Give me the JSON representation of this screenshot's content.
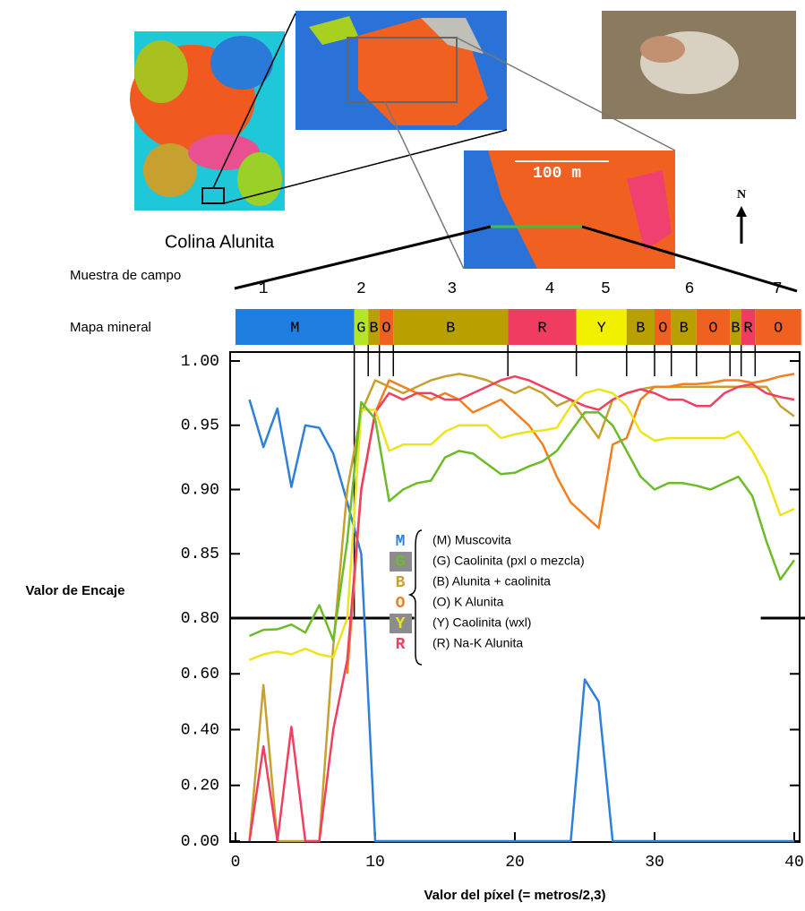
{
  "chart_data": {
    "type": "line",
    "x_label": "Valor del píxel (= metros/2,3)",
    "y_label": "Valor de Encaje",
    "annotations": {
      "site": "Colina Alunita",
      "scale": "100 m",
      "north": "N",
      "field_row": "Muestra de campo",
      "map_row": "Mapa mineral"
    },
    "field_samples": [
      "1",
      "2",
      "3",
      "4",
      "5",
      "6",
      "7"
    ],
    "mineral_map": [
      {
        "label": "M",
        "color": "#1e7fe0",
        "start": 0,
        "end": 8.5
      },
      {
        "label": "G",
        "color": "#b4e628",
        "start": 8.5,
        "end": 9.5
      },
      {
        "label": "B",
        "color": "#b8a000",
        "start": 9.5,
        "end": 10.3
      },
      {
        "label": "O",
        "color": "#f06020",
        "start": 10.3,
        "end": 11.3
      },
      {
        "label": "B",
        "color": "#b8a000",
        "start": 11.3,
        "end": 19.5
      },
      {
        "label": "R",
        "color": "#f03c60",
        "start": 19.5,
        "end": 24.4
      },
      {
        "label": "Y",
        "color": "#f0f000",
        "start": 24.4,
        "end": 28
      },
      {
        "label": "B",
        "color": "#b8a000",
        "start": 28,
        "end": 30
      },
      {
        "label": "O",
        "color": "#f06020",
        "start": 30,
        "end": 31.2
      },
      {
        "label": "B",
        "color": "#b8a000",
        "start": 31.2,
        "end": 33
      },
      {
        "label": "O",
        "color": "#f06020",
        "start": 33,
        "end": 35.4
      },
      {
        "label": "B",
        "color": "#b8a000",
        "start": 35.4,
        "end": 36.2
      },
      {
        "label": "R",
        "color": "#f03c60",
        "start": 36.2,
        "end": 37.2
      },
      {
        "label": "O",
        "color": "#f06020",
        "start": 37.2,
        "end": 40.5
      }
    ],
    "xlim": [
      0,
      40
    ],
    "xticks": [
      0,
      10,
      20,
      30,
      40
    ],
    "ylim": [
      0,
      1
    ],
    "yticks": [
      {
        "value": 0,
        "label": "0.00"
      },
      {
        "value": 0.2,
        "label": "0.20"
      },
      {
        "value": 0.4,
        "label": "0.40"
      },
      {
        "value": 0.6,
        "label": "0.60"
      },
      {
        "value": 0.8,
        "label": "0.80"
      },
      {
        "value": 0.85,
        "label": "0.85"
      },
      {
        "value": 0.9,
        "label": "0.90"
      },
      {
        "value": 0.95,
        "label": "0.95"
      },
      {
        "value": 1,
        "label": "1.00"
      }
    ],
    "reference_line": 0.8,
    "x": [
      1,
      2,
      3,
      4,
      5,
      6,
      7,
      8,
      9,
      10,
      11,
      12,
      13,
      14,
      15,
      16,
      17,
      18,
      19,
      20,
      21,
      22,
      23,
      24,
      25,
      26,
      27,
      28,
      29,
      30,
      31,
      32,
      33,
      34,
      35,
      36,
      37,
      38,
      39,
      40
    ],
    "series": [
      {
        "key": "M",
        "name": "(M) Muscovita",
        "color": "#2f80d8",
        "key_bg": null,
        "values": [
          0.97,
          0.933,
          0.963,
          0.902,
          0.95,
          0.948,
          0.928,
          0.89,
          0.85,
          0,
          0,
          0,
          0,
          0,
          0,
          0,
          0,
          0,
          0,
          0,
          0,
          0,
          0,
          0,
          0.58,
          0.5,
          0,
          0,
          0,
          0,
          0,
          0,
          0,
          0,
          0,
          0,
          0,
          0,
          0,
          0
        ]
      },
      {
        "key": "B",
        "name": "(B) Alunita + caolinita",
        "color": "#c8a030",
        "key_bg": null,
        "values": [
          0,
          0.56,
          0,
          0,
          0,
          0,
          0.7,
          0.9,
          0.96,
          0.985,
          0.98,
          0.975,
          0.98,
          0.985,
          0.988,
          0.99,
          0.988,
          0.985,
          0.98,
          0.975,
          0.98,
          0.975,
          0.965,
          0.97,
          0.955,
          0.94,
          0.97,
          0.975,
          0.978,
          0.98,
          0.98,
          0.98,
          0.98,
          0.98,
          0.98,
          0.98,
          0.98,
          0.98,
          0.965,
          0.957
        ]
      },
      {
        "key": "O",
        "name": "(O) K Alunita",
        "color": "#f08020",
        "key_bg": null,
        "values": [
          null,
          null,
          null,
          null,
          null,
          null,
          null,
          0.6,
          0.9,
          0.96,
          0.985,
          0.98,
          0.975,
          0.97,
          0.975,
          0.97,
          0.96,
          0.965,
          0.97,
          0.96,
          0.95,
          0.935,
          0.91,
          0.89,
          0.88,
          0.87,
          0.935,
          0.94,
          0.97,
          0.98,
          0.98,
          0.982,
          0.982,
          0.983,
          0.985,
          0.985,
          0.983,
          0.985,
          0.988,
          0.99
        ]
      },
      {
        "key": "R",
        "name": "(R) Na-K Alunita",
        "color": "#f04060",
        "key_bg": null,
        "values": [
          0,
          0.34,
          0,
          0.41,
          0,
          0,
          0.4,
          0.65,
          0.9,
          0.96,
          0.975,
          0.97,
          0.975,
          0.975,
          0.97,
          0.97,
          0.975,
          0.98,
          0.985,
          0.988,
          0.985,
          0.98,
          0.975,
          0.97,
          0.965,
          0.962,
          0.97,
          0.975,
          0.978,
          0.975,
          0.97,
          0.97,
          0.965,
          0.965,
          0.975,
          0.98,
          0.982,
          0.975,
          0.972,
          0.97
        ]
      },
      {
        "key": "Y",
        "name": "(Y) Caolinita (wxl)",
        "color": "#ece41c",
        "key_bg": "#8c8c8c",
        "values": [
          0.65,
          0.67,
          0.68,
          0.67,
          0.69,
          0.67,
          0.66,
          0.8,
          0.962,
          0.962,
          0.93,
          0.935,
          0.935,
          0.935,
          0.945,
          0.95,
          0.95,
          0.95,
          0.94,
          0.943,
          0.945,
          0.946,
          0.948,
          0.965,
          0.975,
          0.978,
          0.975,
          0.965,
          0.945,
          0.938,
          0.94,
          0.94,
          0.94,
          0.94,
          0.94,
          0.945,
          0.93,
          0.91,
          0.88,
          0.885
        ]
      },
      {
        "key": "G",
        "name": "(G) Caolinita (pxl o mezcla)",
        "color": "#6cbc2a",
        "key_bg": "#8c8c8c",
        "values": [
          0.736,
          0.758,
          0.76,
          0.777,
          0.748,
          0.81,
          0.72,
          0.86,
          0.968,
          0.955,
          0.891,
          0.9,
          0.905,
          0.907,
          0.925,
          0.93,
          0.928,
          0.92,
          0.912,
          0.913,
          0.918,
          0.922,
          0.93,
          0.945,
          0.96,
          0.96,
          0.95,
          0.93,
          0.91,
          0.9,
          0.905,
          0.905,
          0.903,
          0.9,
          0.905,
          0.91,
          0.895,
          0.86,
          0.83,
          0.845
        ]
      }
    ]
  }
}
